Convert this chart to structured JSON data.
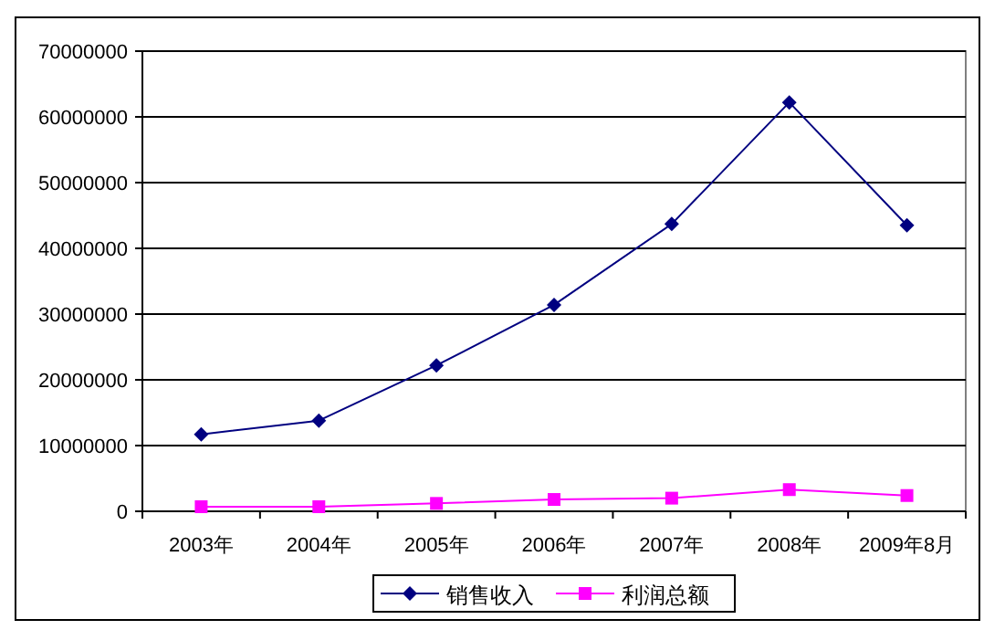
{
  "chart_data": {
    "type": "line",
    "categories": [
      "2003年",
      "2004年",
      "2005年",
      "2006年",
      "2007年",
      "2008年",
      "2009年8月"
    ],
    "series": [
      {
        "name": "销售收入",
        "color": "#000080",
        "marker": "diamond",
        "values": [
          11700000,
          13800000,
          22200000,
          31400000,
          43700000,
          62200000,
          43500000
        ]
      },
      {
        "name": "利润总额",
        "color": "#ff00ff",
        "marker": "square",
        "values": [
          700000,
          700000,
          1200000,
          1800000,
          2000000,
          3300000,
          2400000
        ]
      }
    ],
    "ylim": [
      0,
      70000000
    ],
    "yticks": [
      0,
      10000000,
      20000000,
      30000000,
      40000000,
      50000000,
      60000000,
      70000000
    ],
    "grid": "y",
    "legend": "bottom"
  }
}
